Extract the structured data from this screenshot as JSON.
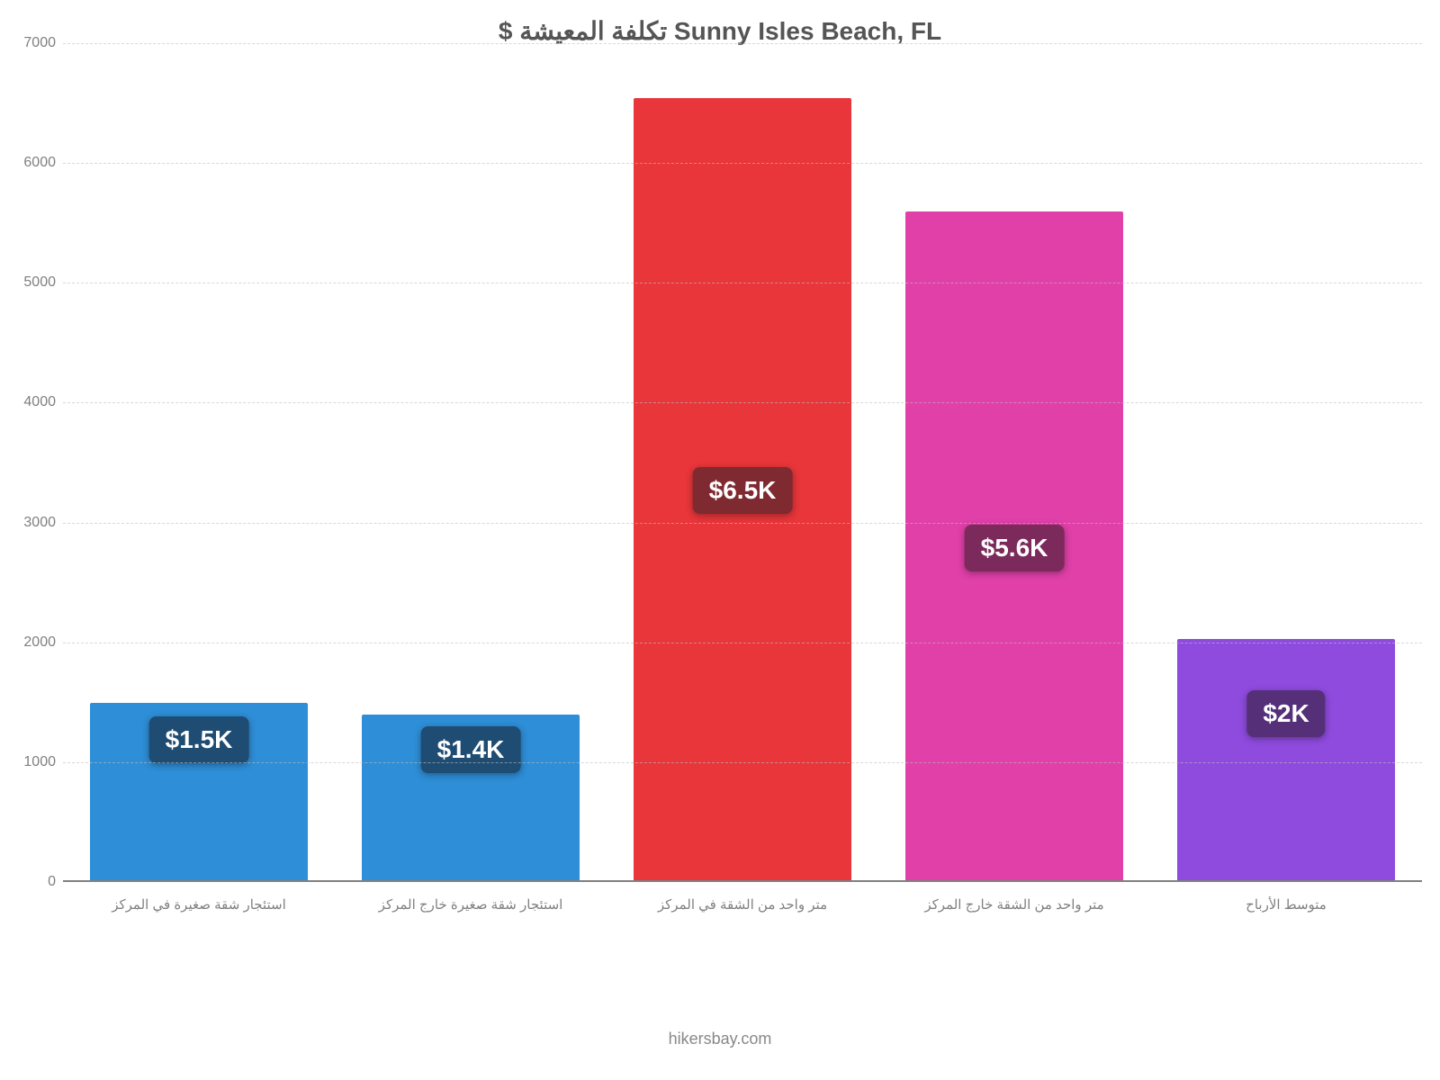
{
  "chart": {
    "type": "bar",
    "title": "Sunny Isles Beach, FL تكلفة المعيشة $",
    "title_fontsize": 28,
    "title_color": "#555555",
    "background_color": "#ffffff",
    "grid_color": "#bfbfbf",
    "axis_line_color": "#808080",
    "axis_tick_color": "#808080",
    "axis_tick_fontsize": 16,
    "xlabel_fontsize": 15,
    "xlabel_color": "#808080",
    "value_label_fontsize": 28,
    "value_label_text_color": "#ffffff",
    "ylim": [
      0,
      7000
    ],
    "ytick_step": 1000,
    "yticks": [
      0,
      1000,
      2000,
      3000,
      4000,
      5000,
      6000,
      7000
    ],
    "bar_width_ratio": 0.8,
    "categories": [
      "استئجار شقة صغيرة في المركز",
      "استئجار شقة صغيرة خارج المركز",
      "متر واحد من الشقة في المركز",
      "متر واحد من الشقة خارج المركز",
      "متوسط الأرباح"
    ],
    "values": [
      1480,
      1380,
      6530,
      5580,
      2010
    ],
    "value_labels": [
      "$1.5K",
      "$1.4K",
      "$6.5K",
      "$5.6K",
      "$2K"
    ],
    "bar_colors": [
      "#2e8ed7",
      "#2e8ed7",
      "#e8363a",
      "#e040a8",
      "#8f4bde"
    ],
    "badge_colors": [
      "#1f4c72",
      "#1f4c72",
      "#7f2a30",
      "#7c2a5c",
      "#553079"
    ],
    "footer": "hikersbay.com",
    "footer_fontsize": 18,
    "footer_color": "#888888"
  }
}
